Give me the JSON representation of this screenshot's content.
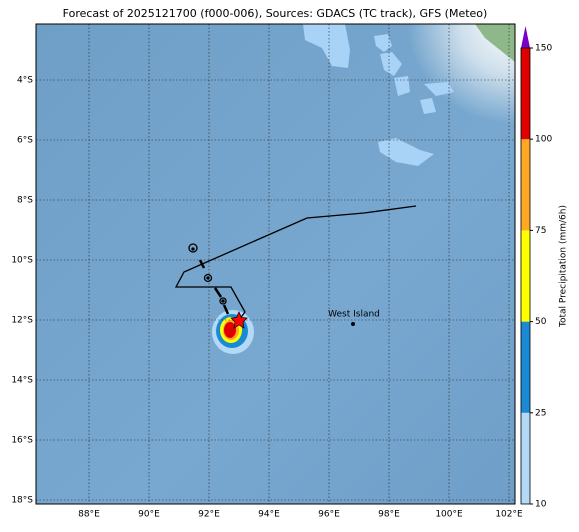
{
  "title": "Forecast of 2025121700 (f000-006), Sources: GDACS (TC track), GFS (Meteo)",
  "map": {
    "lat_labels": [
      "4°S",
      "6°S",
      "8°S",
      "10°S",
      "12°S",
      "14°S",
      "16°S",
      "18°S"
    ],
    "lon_labels": [
      "88°E",
      "90°E",
      "92°E",
      "94°E",
      "96°E",
      "98°E",
      "100°E",
      "102°E"
    ],
    "places": [
      {
        "name": "West Island"
      }
    ]
  },
  "colorbar": {
    "label": "Total Precipitation (mm/6h)",
    "ticks": [
      10,
      25,
      50,
      75,
      100,
      150
    ],
    "colors": [
      "#b3d9f7",
      "#1a8ad4",
      "#ffff00",
      "#ffa824",
      "#e00000"
    ],
    "extend_color": "#7a00c8"
  }
}
